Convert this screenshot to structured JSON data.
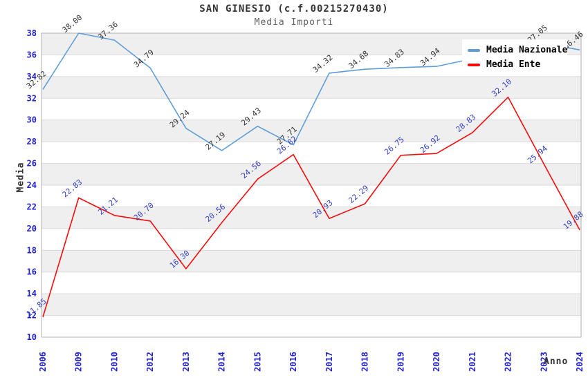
{
  "title": "SAN GINESIO (c.f.00215270430)",
  "subtitle": "Media Importi",
  "axes": {
    "y_title": "Media",
    "x_title": "Anno",
    "y_ticks": [
      10,
      12,
      14,
      16,
      18,
      20,
      22,
      24,
      26,
      28,
      30,
      32,
      34,
      36,
      38
    ]
  },
  "legend": {
    "items": [
      {
        "label": "Media Nazionale",
        "color": "#5f9dd8"
      },
      {
        "label": "Media Ente",
        "color": "#f20c0c"
      }
    ]
  },
  "colors": {
    "band": "#efefef",
    "gridline": "#d9d9d9",
    "plot_border": "#b0b0b0",
    "tick_text": "#2222cc",
    "blue_series_label": "#333333",
    "red_series_label": "#3340bf"
  },
  "chart_data": {
    "type": "line",
    "title": "SAN GINESIO (c.f.00215270430)",
    "subtitle": "Media Importi",
    "xlabel": "Anno",
    "ylabel": "Media",
    "ylim": [
      10,
      38
    ],
    "y_tick_step": 2,
    "grid": true,
    "alternating_bands": true,
    "legend_position": "top-right",
    "categories": [
      "2006",
      "2009",
      "2010",
      "2012",
      "2013",
      "2014",
      "2015",
      "2016",
      "2017",
      "2018",
      "2019",
      "2020",
      "2021",
      "2022",
      "2023",
      "2024"
    ],
    "series": [
      {
        "name": "Media Nazionale",
        "color": "#5f9dd8",
        "label_color": "#333333",
        "values": [
          32.82,
          38.0,
          37.36,
          34.79,
          29.24,
          27.19,
          29.43,
          27.71,
          34.32,
          34.68,
          34.83,
          34.94,
          null,
          null,
          37.05,
          36.46
        ]
      },
      {
        "name": "Media Ente",
        "color": "#f20c0c",
        "label_color": "#3340bf",
        "values": [
          11.85,
          22.83,
          21.21,
          20.7,
          16.3,
          20.56,
          24.56,
          26.82,
          20.93,
          22.29,
          26.75,
          26.92,
          28.83,
          32.1,
          25.94,
          19.88
        ]
      }
    ]
  }
}
